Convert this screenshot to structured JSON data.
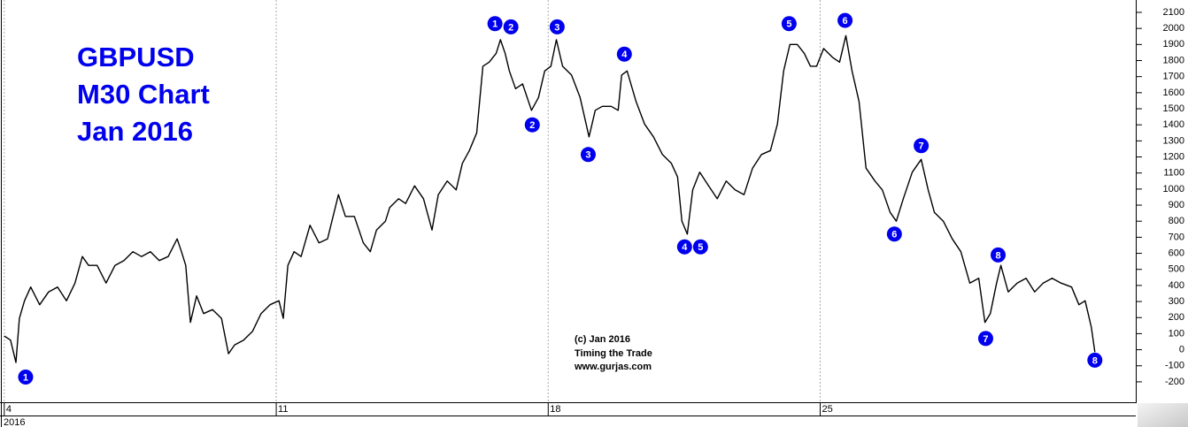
{
  "chart_data": {
    "type": "line",
    "title": [
      "GBPUSD",
      "M30 Chart",
      "Jan 2016"
    ],
    "credit": [
      "(c) Jan 2016",
      "Timing the Trade",
      "www.gurjas.com"
    ],
    "x_year_label": "2016",
    "color": "#000000",
    "marker_color": "#0000ee",
    "grid": true,
    "xlim": [
      3.89,
      33.1
    ],
    "xticks": [
      4,
      11,
      18,
      25
    ],
    "ylim": [
      -327,
      2177
    ],
    "yticks": [
      -200,
      -100,
      0,
      100,
      200,
      300,
      400,
      500,
      600,
      700,
      800,
      900,
      1000,
      1100,
      1200,
      1300,
      1400,
      1500,
      1600,
      1700,
      1800,
      1900,
      2000,
      2100
    ],
    "x": [
      4.0,
      4.16,
      4.3,
      4.39,
      4.52,
      4.68,
      4.91,
      5.14,
      5.37,
      5.6,
      5.82,
      6.01,
      6.17,
      6.39,
      6.62,
      6.85,
      7.08,
      7.31,
      7.53,
      7.76,
      7.99,
      8.22,
      8.45,
      8.56,
      8.67,
      8.79,
      8.95,
      9.13,
      9.36,
      9.59,
      9.77,
      9.93,
      10.16,
      10.39,
      10.61,
      10.84,
      11.07,
      11.18,
      11.3,
      11.46,
      11.64,
      11.87,
      12.1,
      12.32,
      12.6,
      12.78,
      13.01,
      13.24,
      13.42,
      13.58,
      13.81,
      13.92,
      14.15,
      14.33,
      14.56,
      14.79,
      15.01,
      15.17,
      15.4,
      15.63,
      15.79,
      15.97,
      16.16,
      16.32,
      16.48,
      16.66,
      16.77,
      16.89,
      17.0,
      17.16,
      17.34,
      17.57,
      17.75,
      17.91,
      18.07,
      18.21,
      18.37,
      18.6,
      18.82,
      19.05,
      19.21,
      19.39,
      19.62,
      19.8,
      19.89,
      20.03,
      20.26,
      20.48,
      20.71,
      20.94,
      21.17,
      21.33,
      21.44,
      21.58,
      21.72,
      21.9,
      22.13,
      22.35,
      22.58,
      22.81,
      23.04,
      23.26,
      23.49,
      23.72,
      23.9,
      24.06,
      24.22,
      24.41,
      24.59,
      24.75,
      24.91,
      25.09,
      25.32,
      25.5,
      25.66,
      25.82,
      26.0,
      26.18,
      26.41,
      26.6,
      26.8,
      26.96,
      27.14,
      27.37,
      27.6,
      27.78,
      27.94,
      28.17,
      28.4,
      28.62,
      28.85,
      29.08,
      29.24,
      29.38,
      29.54,
      29.65,
      29.84,
      30.07,
      30.3,
      30.52,
      30.74,
      30.97,
      31.2,
      31.47,
      31.66,
      31.82,
      31.98,
      32.07
    ],
    "values": [
      85,
      60,
      -80,
      195,
      305,
      390,
      280,
      360,
      390,
      305,
      415,
      580,
      525,
      525,
      415,
      525,
      555,
      610,
      580,
      610,
      555,
      580,
      690,
      610,
      525,
      170,
      335,
      225,
      250,
      195,
      -25,
      30,
      60,
      115,
      225,
      280,
      305,
      195,
      525,
      610,
      580,
      775,
      665,
      690,
      965,
      830,
      830,
      665,
      610,
      745,
      800,
      885,
      940,
      910,
      1020,
      940,
      745,
      965,
      1050,
      995,
      1160,
      1240,
      1350,
      1765,
      1790,
      1845,
      1930,
      1845,
      1735,
      1625,
      1655,
      1490,
      1570,
      1735,
      1765,
      1930,
      1765,
      1710,
      1570,
      1325,
      1490,
      1515,
      1515,
      1490,
      1710,
      1735,
      1545,
      1405,
      1325,
      1215,
      1160,
      1075,
      800,
      720,
      995,
      1105,
      1020,
      940,
      1050,
      995,
      965,
      1130,
      1215,
      1240,
      1405,
      1735,
      1900,
      1900,
      1845,
      1765,
      1765,
      1875,
      1820,
      1790,
      1955,
      1735,
      1545,
      1130,
      1050,
      995,
      855,
      800,
      940,
      1105,
      1185,
      995,
      855,
      800,
      690,
      610,
      415,
      445,
      170,
      225,
      415,
      525,
      360,
      415,
      445,
      360,
      415,
      445,
      415,
      390,
      280,
      305,
      140,
      -15
    ],
    "wave_labels": [
      {
        "label": "1",
        "x": 4.55,
        "y": -170
      },
      {
        "label": "1",
        "x": 16.63,
        "y": 2030
      },
      {
        "label": "2",
        "x": 17.04,
        "y": 2010
      },
      {
        "label": "2",
        "x": 17.59,
        "y": 1400
      },
      {
        "label": "3",
        "x": 18.23,
        "y": 2010
      },
      {
        "label": "3",
        "x": 19.03,
        "y": 1215
      },
      {
        "label": "4",
        "x": 19.96,
        "y": 1840
      },
      {
        "label": "4",
        "x": 21.51,
        "y": 640
      },
      {
        "label": "5",
        "x": 21.92,
        "y": 640
      },
      {
        "label": "5",
        "x": 24.2,
        "y": 2030
      },
      {
        "label": "6",
        "x": 25.64,
        "y": 2050
      },
      {
        "label": "6",
        "x": 26.91,
        "y": 720
      },
      {
        "label": "7",
        "x": 27.6,
        "y": 1270
      },
      {
        "label": "7",
        "x": 29.26,
        "y": 70
      },
      {
        "label": "8",
        "x": 29.58,
        "y": 590
      },
      {
        "label": "8",
        "x": 32.07,
        "y": -65
      }
    ]
  }
}
